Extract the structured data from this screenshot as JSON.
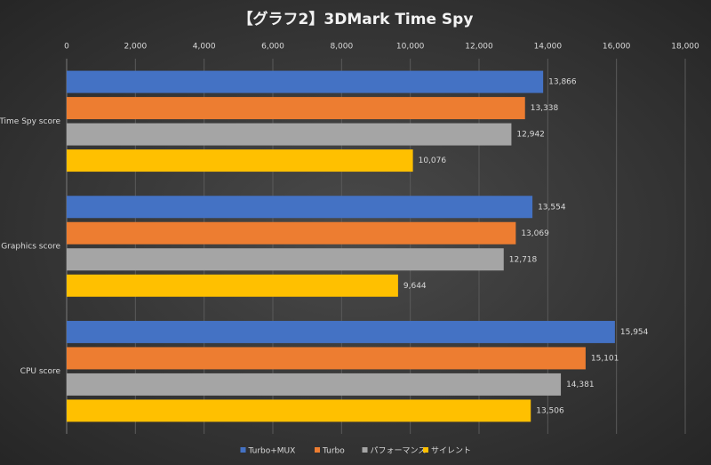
{
  "chart_data": {
    "type": "bar",
    "orientation": "horizontal",
    "title": "【グラフ2】3DMark Time Spy",
    "categories": [
      "Time Spy score",
      "Graphics score",
      "CPU score"
    ],
    "series": [
      {
        "name": "Turbo+MUX",
        "color": "#4472c4",
        "values": [
          13866,
          13554,
          15954
        ],
        "value_labels": [
          "13,866",
          "13,554",
          "15,954"
        ]
      },
      {
        "name": "Turbo",
        "color": "#ed7d31",
        "values": [
          13338,
          13069,
          15101
        ],
        "value_labels": [
          "13,338",
          "13,069",
          "15,101"
        ]
      },
      {
        "name": "パフォーマンス",
        "color": "#a5a5a5",
        "values": [
          12942,
          12718,
          14381
        ],
        "value_labels": [
          "12,942",
          "12,718",
          "14,381"
        ]
      },
      {
        "name": "サイレント",
        "color": "#ffc000",
        "values": [
          10076,
          9644,
          13506
        ],
        "value_labels": [
          "10,076",
          "9,644",
          "13,506"
        ]
      }
    ],
    "xlim": [
      0,
      18000
    ],
    "xticks": [
      0,
      {
        "value": 2000,
        "label": "2,000"
      },
      {
        "value": 4000,
        "label": "4,000"
      },
      {
        "value": 6000,
        "label": "6,000"
      },
      {
        "value": 8000,
        "label": "8,000"
      },
      {
        "value": 10000,
        "label": "10,000"
      },
      {
        "value": 12000,
        "label": "12,000"
      },
      {
        "value": 14000,
        "label": "14,000"
      },
      {
        "value": 16000,
        "label": "16,000"
      },
      {
        "value": 18000,
        "label": "18,000"
      }
    ],
    "grid": true,
    "legend": "bottom"
  }
}
